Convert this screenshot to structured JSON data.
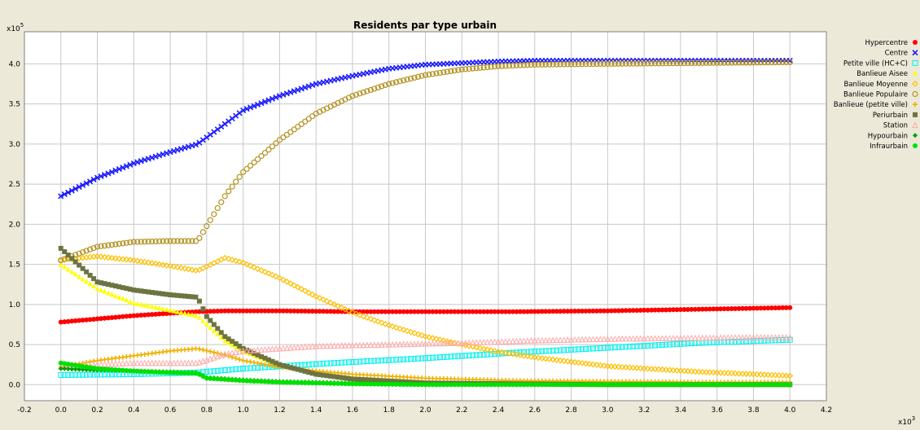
{
  "chart_data": {
    "type": "scatter",
    "title": "Residents par type urbain",
    "x_multiplier_label": "x10",
    "x_multiplier_exp": "3",
    "y_multiplier_label": "x10",
    "y_multiplier_exp": "5",
    "xlim": [
      -0.2,
      4.2
    ],
    "ylim": [
      -0.2,
      4.4
    ],
    "x_ticks": [
      -0.2,
      0.0,
      0.2,
      0.4,
      0.6,
      0.8,
      1.0,
      1.2,
      1.4,
      1.6,
      1.8,
      2.0,
      2.2,
      2.4,
      2.6,
      2.8,
      3.0,
      3.2,
      3.4,
      3.6,
      3.8,
      4.0,
      4.2
    ],
    "x_tick_labels": [
      "-0.2",
      "0.0",
      "0.2",
      "0.4",
      "0.6",
      "0.8",
      "1.0",
      "1.2",
      "1.4",
      "1.6",
      "1.8",
      "2.0",
      "2.2",
      "2.4",
      "2.6",
      "2.8",
      "3.0",
      "3.2",
      "3.4",
      "3.6",
      "3.8",
      "4.0",
      "4.2"
    ],
    "y_ticks": [
      0.0,
      0.5,
      1.0,
      1.5,
      2.0,
      2.5,
      3.0,
      3.5,
      4.0
    ],
    "y_tick_labels": [
      "0.0",
      "0.5",
      "1.0",
      "1.5",
      "2.0",
      "2.5",
      "3.0",
      "3.5",
      "4.0"
    ],
    "grid": true,
    "legend_position": "right",
    "series": [
      {
        "name": "Hypercentre",
        "color": "#ff0000",
        "marker": "circle",
        "x": [
          0.0,
          0.2,
          0.4,
          0.6,
          0.75,
          0.9,
          1.2,
          1.6,
          2.0,
          2.5,
          3.0,
          3.5,
          4.0
        ],
        "y": [
          0.78,
          0.82,
          0.86,
          0.89,
          0.91,
          0.92,
          0.92,
          0.91,
          0.91,
          0.91,
          0.92,
          0.94,
          0.96
        ]
      },
      {
        "name": "Centre",
        "color": "#1a1aff",
        "marker": "cross",
        "x": [
          0.0,
          0.2,
          0.4,
          0.6,
          0.75,
          0.9,
          1.0,
          1.2,
          1.4,
          1.6,
          1.8,
          2.0,
          2.2,
          2.4,
          2.6,
          3.0,
          3.5,
          4.0
        ],
        "y": [
          2.35,
          2.58,
          2.76,
          2.9,
          3.0,
          3.25,
          3.42,
          3.6,
          3.75,
          3.85,
          3.94,
          3.99,
          4.01,
          4.03,
          4.04,
          4.04,
          4.04,
          4.04
        ]
      },
      {
        "name": "Petite ville (HC+C)",
        "color": "#00f0f0",
        "marker": "square",
        "x": [
          0.0,
          0.4,
          0.75,
          1.0,
          1.5,
          2.0,
          2.5,
          3.0,
          3.5,
          4.0
        ],
        "y": [
          0.12,
          0.13,
          0.15,
          0.2,
          0.27,
          0.33,
          0.4,
          0.46,
          0.52,
          0.56
        ]
      },
      {
        "name": "Banlieue Aisee",
        "color": "#ffff00",
        "marker": "triangle",
        "x": [
          0.0,
          0.2,
          0.4,
          0.6,
          0.75,
          0.9,
          1.0,
          1.2,
          1.4,
          1.6,
          2.0,
          2.5,
          3.0,
          3.5,
          4.0
        ],
        "y": [
          1.5,
          1.2,
          1.02,
          0.93,
          0.86,
          0.55,
          0.42,
          0.25,
          0.14,
          0.08,
          0.03,
          0.01,
          0.0,
          0.0,
          0.0
        ]
      },
      {
        "name": "Banlieue Moyenne",
        "color": "#ffc000",
        "marker": "diamond",
        "x": [
          0.0,
          0.2,
          0.4,
          0.6,
          0.75,
          0.9,
          1.0,
          1.2,
          1.4,
          1.6,
          1.8,
          2.0,
          2.2,
          2.4,
          2.6,
          3.0,
          3.5,
          4.0
        ],
        "y": [
          1.55,
          1.6,
          1.55,
          1.48,
          1.42,
          1.58,
          1.52,
          1.33,
          1.1,
          0.9,
          0.74,
          0.6,
          0.5,
          0.41,
          0.34,
          0.23,
          0.16,
          0.11
        ]
      },
      {
        "name": "Banlieue Populaire",
        "color": "#b39220",
        "marker": "circle-open",
        "x": [
          0.0,
          0.2,
          0.4,
          0.6,
          0.75,
          0.9,
          1.0,
          1.2,
          1.4,
          1.6,
          1.8,
          2.0,
          2.2,
          2.4,
          2.6,
          3.0,
          3.5,
          4.0
        ],
        "y": [
          1.55,
          1.72,
          1.78,
          1.79,
          1.79,
          2.35,
          2.65,
          3.05,
          3.38,
          3.6,
          3.75,
          3.86,
          3.93,
          3.97,
          3.99,
          4.0,
          4.01,
          4.02
        ]
      },
      {
        "name": "Banlieue (petite ville)",
        "color": "#f0b000",
        "marker": "plus",
        "x": [
          0.0,
          0.2,
          0.4,
          0.6,
          0.75,
          0.9,
          1.0,
          1.2,
          1.4,
          1.6,
          2.0,
          2.5,
          3.0,
          3.5,
          4.0
        ],
        "y": [
          0.22,
          0.3,
          0.36,
          0.42,
          0.45,
          0.37,
          0.3,
          0.22,
          0.17,
          0.13,
          0.08,
          0.05,
          0.04,
          0.03,
          0.03
        ]
      },
      {
        "name": "Periurbain",
        "color": "#6e7440",
        "marker": "square-filled",
        "x": [
          0.0,
          0.2,
          0.4,
          0.6,
          0.75,
          0.8,
          0.9,
          1.0,
          1.2,
          1.4,
          1.6,
          2.0,
          2.5,
          3.0,
          3.5,
          4.0
        ],
        "y": [
          1.7,
          1.28,
          1.18,
          1.12,
          1.09,
          0.85,
          0.6,
          0.45,
          0.25,
          0.13,
          0.07,
          0.02,
          0.01,
          0.0,
          0.0,
          0.0
        ]
      },
      {
        "name": "Station",
        "color": "#ffaaaa",
        "marker": "triangle-open",
        "x": [
          0.0,
          0.2,
          0.4,
          0.6,
          0.75,
          0.9,
          1.0,
          1.2,
          1.4,
          1.8,
          2.2,
          2.6,
          3.0,
          3.4,
          3.8,
          4.0
        ],
        "y": [
          0.22,
          0.25,
          0.27,
          0.27,
          0.27,
          0.38,
          0.42,
          0.45,
          0.48,
          0.5,
          0.52,
          0.55,
          0.57,
          0.58,
          0.59,
          0.59
        ]
      },
      {
        "name": "Hypourbain",
        "color": "#00a000",
        "marker": "diamond-filled",
        "x": [
          0.0,
          0.2,
          0.4,
          0.6,
          0.75,
          0.8,
          1.0,
          1.2,
          1.6,
          2.0,
          3.0,
          4.0
        ],
        "y": [
          0.2,
          0.18,
          0.17,
          0.16,
          0.15,
          0.09,
          0.06,
          0.04,
          0.02,
          0.01,
          0.0,
          0.0
        ]
      },
      {
        "name": "Infraurbain",
        "color": "#00e000",
        "marker": "circle",
        "x": [
          0.0,
          0.2,
          0.4,
          0.6,
          0.75,
          0.8,
          1.0,
          1.2,
          1.6,
          2.0,
          3.0,
          4.0
        ],
        "y": [
          0.27,
          0.2,
          0.17,
          0.15,
          0.14,
          0.08,
          0.05,
          0.03,
          0.01,
          0.0,
          0.0,
          0.0
        ]
      }
    ]
  }
}
